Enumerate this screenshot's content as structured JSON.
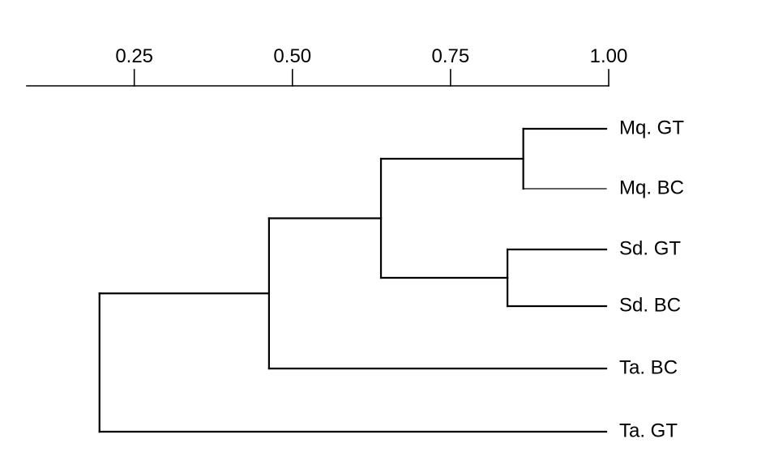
{
  "chart_data": {
    "type": "dendrogram",
    "title": "",
    "xlabel": "",
    "ylabel": "",
    "xlim": [
      0.08,
      1.0
    ],
    "ticks": [
      0.25,
      0.5,
      0.75,
      1.0
    ],
    "tick_labels": [
      "0.25",
      "0.50",
      "0.75",
      "1.00"
    ],
    "grid": false,
    "legend": "none",
    "leaves": [
      "Mq. GT",
      "Mq. BC",
      "Sd. GT",
      "Sd. BC",
      "Ta. BC",
      "Ta. GT"
    ],
    "merges": [
      {
        "name": "mq",
        "children": [
          "Mq. GT",
          "Mq. BC"
        ],
        "similarity": 0.865
      },
      {
        "name": "sd",
        "children": [
          "Sd. GT",
          "Sd. BC"
        ],
        "similarity": 0.84
      },
      {
        "name": "mq-sd",
        "children": [
          "mq",
          "sd"
        ],
        "similarity": 0.64
      },
      {
        "name": "mq-sd-tabc",
        "children": [
          "mq-sd",
          "Ta. BC"
        ],
        "similarity": 0.463
      },
      {
        "name": "root",
        "children": [
          "mq-sd-tabc",
          "Ta. GT"
        ],
        "similarity": 0.195
      }
    ]
  }
}
